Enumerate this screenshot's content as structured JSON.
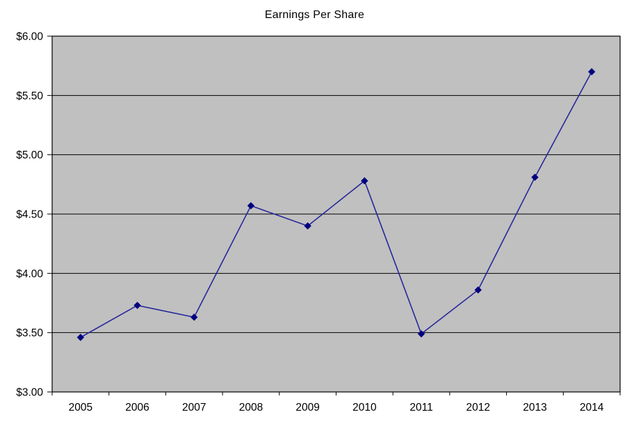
{
  "colors": {
    "page_bg": "#ffffff",
    "plot_bg": "#c0c0c0",
    "gridline": "#000000",
    "plot_border": "#000000",
    "axis_line": "#000000",
    "axis_text": "#000000",
    "series_line": "#26269c",
    "marker_fill": "#000080"
  },
  "chart_data": {
    "type": "line",
    "title": "Earnings Per Share",
    "categories": [
      "2005",
      "2006",
      "2007",
      "2008",
      "2009",
      "2010",
      "2011",
      "2012",
      "2013",
      "2014"
    ],
    "series": [
      {
        "name": "Earnings Per Share",
        "values": [
          3.46,
          3.73,
          3.63,
          4.57,
          4.4,
          4.78,
          3.49,
          3.86,
          4.81,
          5.7
        ]
      }
    ],
    "ylim": [
      3.0,
      6.0
    ],
    "y_ticks": [
      3.0,
      3.5,
      4.0,
      4.5,
      5.0,
      5.5,
      6.0
    ],
    "y_tick_labels": [
      "$3.00",
      "$3.50",
      "$4.00",
      "$4.50",
      "$5.00",
      "$5.50",
      "$6.00"
    ],
    "xlabel": "",
    "ylabel": "",
    "grid": true,
    "legend": "none",
    "marker": "diamond"
  }
}
